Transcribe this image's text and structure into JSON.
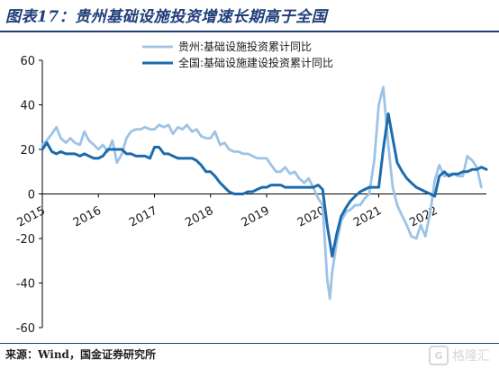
{
  "title": "图表17：贵州基础设施投资增速长期高于全国",
  "source": "来源：Wind，国金证券研究所",
  "watermark": "格隆汇",
  "chart_data": {
    "type": "line",
    "xlim": [
      2015.0,
      2022.92
    ],
    "ylim": [
      -60,
      60
    ],
    "yticks": [
      -60,
      -40,
      -20,
      0,
      20,
      40,
      60
    ],
    "xticks": [
      2015,
      2016,
      2017,
      2018,
      2019,
      2020,
      2021,
      2022
    ],
    "grid": false,
    "legend_position": "top-center",
    "series": [
      {
        "name": "贵州:基础设施投资累计同比",
        "color": "#9dc3e6",
        "width": 2.8,
        "points": [
          [
            2015.0,
            22
          ],
          [
            2015.08,
            24
          ],
          [
            2015.17,
            27
          ],
          [
            2015.25,
            30
          ],
          [
            2015.33,
            25
          ],
          [
            2015.42,
            23
          ],
          [
            2015.5,
            25
          ],
          [
            2015.58,
            23
          ],
          [
            2015.67,
            22
          ],
          [
            2015.75,
            28
          ],
          [
            2015.83,
            24
          ],
          [
            2015.92,
            22
          ],
          [
            2016.0,
            20
          ],
          [
            2016.08,
            22
          ],
          [
            2016.17,
            19
          ],
          [
            2016.25,
            24
          ],
          [
            2016.33,
            14
          ],
          [
            2016.42,
            18
          ],
          [
            2016.5,
            25
          ],
          [
            2016.58,
            28
          ],
          [
            2016.67,
            29
          ],
          [
            2016.75,
            29
          ],
          [
            2016.83,
            30
          ],
          [
            2016.92,
            29
          ],
          [
            2017.0,
            29
          ],
          [
            2017.08,
            31
          ],
          [
            2017.17,
            30
          ],
          [
            2017.25,
            31
          ],
          [
            2017.33,
            27
          ],
          [
            2017.42,
            30
          ],
          [
            2017.5,
            29
          ],
          [
            2017.58,
            31
          ],
          [
            2017.67,
            28
          ],
          [
            2017.75,
            29
          ],
          [
            2017.83,
            26
          ],
          [
            2017.92,
            25
          ],
          [
            2018.0,
            25
          ],
          [
            2018.08,
            28
          ],
          [
            2018.17,
            22
          ],
          [
            2018.25,
            23
          ],
          [
            2018.33,
            20
          ],
          [
            2018.42,
            19
          ],
          [
            2018.5,
            19
          ],
          [
            2018.58,
            18
          ],
          [
            2018.67,
            18
          ],
          [
            2018.75,
            17
          ],
          [
            2018.83,
            16
          ],
          [
            2018.92,
            16
          ],
          [
            2019.0,
            16
          ],
          [
            2019.08,
            13
          ],
          [
            2019.17,
            10
          ],
          [
            2019.25,
            10
          ],
          [
            2019.33,
            12
          ],
          [
            2019.42,
            9
          ],
          [
            2019.5,
            10
          ],
          [
            2019.58,
            7
          ],
          [
            2019.67,
            5
          ],
          [
            2019.75,
            7
          ],
          [
            2019.83,
            3
          ],
          [
            2019.92,
            -2
          ],
          [
            2020.0,
            -5
          ],
          [
            2020.08,
            -38
          ],
          [
            2020.13,
            -47
          ],
          [
            2020.17,
            -35
          ],
          [
            2020.25,
            -22
          ],
          [
            2020.33,
            -12
          ],
          [
            2020.42,
            -8
          ],
          [
            2020.5,
            -7
          ],
          [
            2020.58,
            -5
          ],
          [
            2020.67,
            -5
          ],
          [
            2020.75,
            -2
          ],
          [
            2020.83,
            0
          ],
          [
            2020.92,
            15
          ],
          [
            2021.0,
            40
          ],
          [
            2021.08,
            48
          ],
          [
            2021.17,
            22
          ],
          [
            2021.25,
            3
          ],
          [
            2021.33,
            -5
          ],
          [
            2021.42,
            -10
          ],
          [
            2021.5,
            -14
          ],
          [
            2021.58,
            -19
          ],
          [
            2021.67,
            -20
          ],
          [
            2021.75,
            -14
          ],
          [
            2021.83,
            -19
          ],
          [
            2021.92,
            -8
          ],
          [
            2022.0,
            6
          ],
          [
            2022.08,
            13
          ],
          [
            2022.17,
            8
          ],
          [
            2022.25,
            9
          ],
          [
            2022.33,
            9
          ],
          [
            2022.42,
            8
          ],
          [
            2022.5,
            8
          ],
          [
            2022.58,
            17
          ],
          [
            2022.67,
            15
          ],
          [
            2022.75,
            12
          ],
          [
            2022.83,
            3
          ]
        ]
      },
      {
        "name": "全国:基础设施建设投资累计同比",
        "color": "#1c6bad",
        "width": 3,
        "points": [
          [
            2015.0,
            20
          ],
          [
            2015.08,
            23
          ],
          [
            2015.17,
            19
          ],
          [
            2015.25,
            18
          ],
          [
            2015.33,
            19
          ],
          [
            2015.42,
            18
          ],
          [
            2015.5,
            18
          ],
          [
            2015.58,
            18
          ],
          [
            2015.67,
            17
          ],
          [
            2015.75,
            18
          ],
          [
            2015.83,
            17
          ],
          [
            2015.92,
            16
          ],
          [
            2016.0,
            16
          ],
          [
            2016.08,
            17
          ],
          [
            2016.17,
            20
          ],
          [
            2016.25,
            20
          ],
          [
            2016.33,
            20
          ],
          [
            2016.42,
            20
          ],
          [
            2016.5,
            18
          ],
          [
            2016.58,
            18
          ],
          [
            2016.67,
            17
          ],
          [
            2016.75,
            17
          ],
          [
            2016.83,
            17
          ],
          [
            2016.92,
            16
          ],
          [
            2017.0,
            21
          ],
          [
            2017.08,
            21
          ],
          [
            2017.17,
            18
          ],
          [
            2017.25,
            18
          ],
          [
            2017.33,
            17
          ],
          [
            2017.42,
            16
          ],
          [
            2017.5,
            16
          ],
          [
            2017.58,
            16
          ],
          [
            2017.67,
            16
          ],
          [
            2017.75,
            15
          ],
          [
            2017.83,
            13
          ],
          [
            2017.92,
            10
          ],
          [
            2018.0,
            10
          ],
          [
            2018.08,
            8
          ],
          [
            2018.17,
            5
          ],
          [
            2018.25,
            3
          ],
          [
            2018.33,
            1
          ],
          [
            2018.42,
            0
          ],
          [
            2018.5,
            0
          ],
          [
            2018.58,
            0
          ],
          [
            2018.67,
            1
          ],
          [
            2018.75,
            1
          ],
          [
            2018.83,
            2
          ],
          [
            2018.92,
            3
          ],
          [
            2019.0,
            3
          ],
          [
            2019.08,
            4
          ],
          [
            2019.17,
            4
          ],
          [
            2019.25,
            4
          ],
          [
            2019.33,
            3
          ],
          [
            2019.42,
            3
          ],
          [
            2019.5,
            3
          ],
          [
            2019.58,
            3
          ],
          [
            2019.67,
            3
          ],
          [
            2019.75,
            3
          ],
          [
            2019.83,
            3
          ],
          [
            2019.92,
            4
          ],
          [
            2020.0,
            2
          ],
          [
            2020.08,
            -14
          ],
          [
            2020.17,
            -28
          ],
          [
            2020.25,
            -18
          ],
          [
            2020.33,
            -10
          ],
          [
            2020.42,
            -6
          ],
          [
            2020.5,
            -3
          ],
          [
            2020.58,
            -1
          ],
          [
            2020.67,
            1
          ],
          [
            2020.75,
            2
          ],
          [
            2020.83,
            3
          ],
          [
            2020.92,
            3
          ],
          [
            2021.0,
            3
          ],
          [
            2021.08,
            20
          ],
          [
            2021.17,
            36
          ],
          [
            2021.25,
            25
          ],
          [
            2021.33,
            14
          ],
          [
            2021.42,
            10
          ],
          [
            2021.5,
            7
          ],
          [
            2021.58,
            5
          ],
          [
            2021.67,
            3
          ],
          [
            2021.75,
            2
          ],
          [
            2021.83,
            1
          ],
          [
            2021.92,
            0
          ],
          [
            2022.0,
            -1
          ],
          [
            2022.08,
            8
          ],
          [
            2022.17,
            10
          ],
          [
            2022.25,
            8
          ],
          [
            2022.33,
            9
          ],
          [
            2022.42,
            9
          ],
          [
            2022.5,
            10
          ],
          [
            2022.58,
            10
          ],
          [
            2022.67,
            11
          ],
          [
            2022.75,
            11
          ],
          [
            2022.83,
            12
          ],
          [
            2022.92,
            11
          ]
        ]
      }
    ]
  }
}
